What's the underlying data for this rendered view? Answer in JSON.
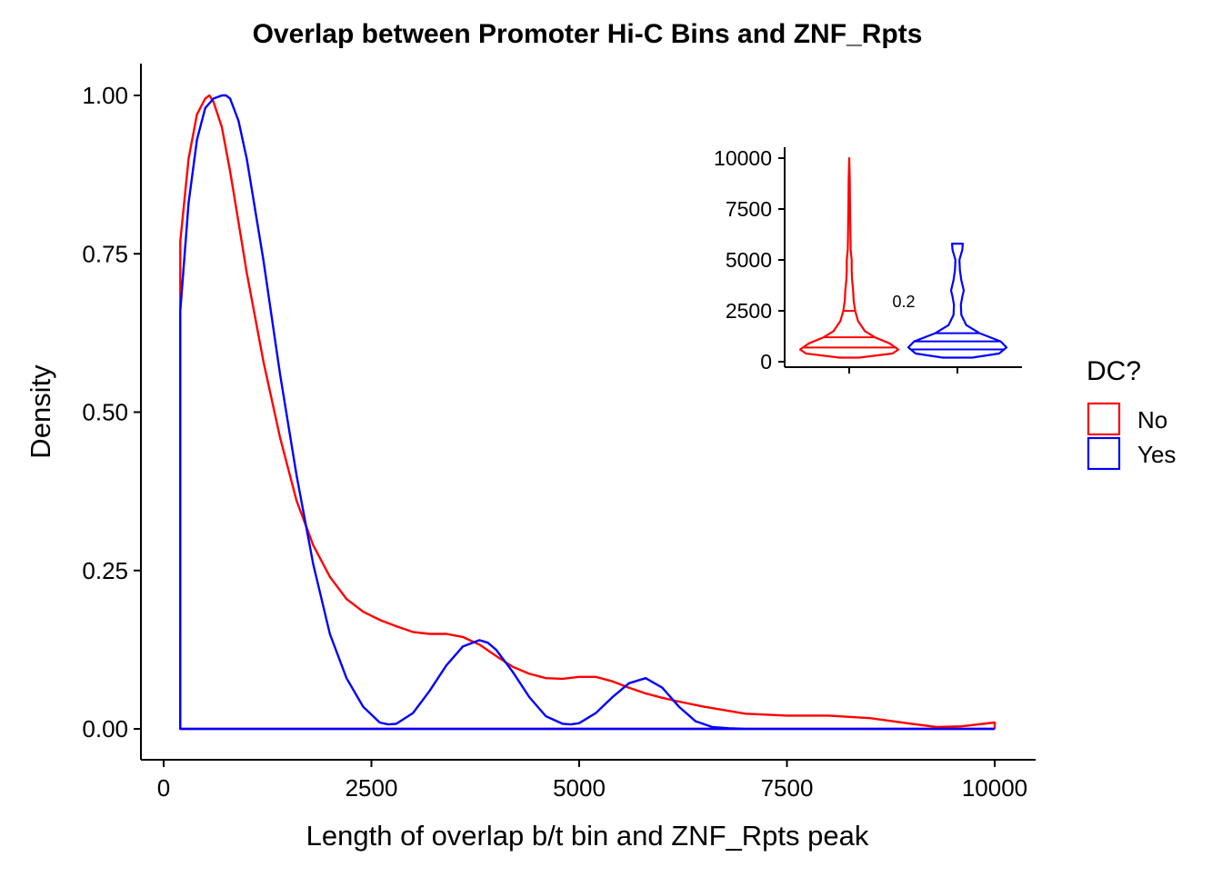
{
  "chart_data": {
    "type": "line",
    "title": "Overlap between Promoter Hi-C Bins and ZNF_Rpts",
    "xlabel": "Length of overlap b/t bin and ZNF_Rpts peak",
    "ylabel": "Density",
    "xlim": [
      0,
      10000
    ],
    "ylim": [
      0,
      1.0
    ],
    "x_ticks": [
      "0",
      "2500",
      "5000",
      "7500",
      "10000"
    ],
    "y_ticks": [
      "0.00",
      "0.25",
      "0.50",
      "0.75",
      "1.00"
    ],
    "grid": false,
    "legend": {
      "title": "DC?",
      "position": "right",
      "entries": [
        {
          "label": "No",
          "color": "#ff0000"
        },
        {
          "label": "Yes",
          "color": "#0000ff"
        }
      ]
    },
    "series": [
      {
        "name": "No",
        "color": "#ff0000",
        "x": [
          200,
          300,
          400,
          500,
          550,
          600,
          700,
          800,
          900,
          1000,
          1200,
          1400,
          1600,
          1800,
          2000,
          2200,
          2400,
          2600,
          2800,
          3000,
          3200,
          3400,
          3600,
          3800,
          4000,
          4200,
          4400,
          4600,
          4800,
          5000,
          5200,
          5400,
          5600,
          5800,
          6000,
          6200,
          6500,
          7000,
          7500,
          8000,
          8500,
          9000,
          9300,
          9600,
          10000
        ],
        "y": [
          0.77,
          0.9,
          0.97,
          0.995,
          1.0,
          0.99,
          0.95,
          0.88,
          0.8,
          0.72,
          0.58,
          0.46,
          0.36,
          0.29,
          0.24,
          0.205,
          0.185,
          0.172,
          0.162,
          0.153,
          0.15,
          0.15,
          0.145,
          0.133,
          0.115,
          0.098,
          0.087,
          0.08,
          0.079,
          0.082,
          0.082,
          0.075,
          0.065,
          0.056,
          0.049,
          0.043,
          0.035,
          0.024,
          0.021,
          0.021,
          0.017,
          0.008,
          0.003,
          0.004,
          0.01
        ]
      },
      {
        "name": "Yes",
        "color": "#0000ff",
        "x": [
          200,
          300,
          400,
          500,
          600,
          700,
          750,
          800,
          900,
          1000,
          1200,
          1400,
          1600,
          1800,
          2000,
          2200,
          2400,
          2600,
          2700,
          2800,
          3000,
          3200,
          3400,
          3600,
          3800,
          3900,
          4000,
          4200,
          4400,
          4600,
          4800,
          4900,
          5000,
          5200,
          5400,
          5600,
          5800,
          6000,
          6200,
          6400,
          6600,
          6800,
          7000,
          7500,
          8000,
          9000,
          10000
        ],
        "y": [
          0.66,
          0.83,
          0.93,
          0.98,
          0.995,
          1.0,
          1.0,
          0.995,
          0.96,
          0.9,
          0.74,
          0.56,
          0.4,
          0.26,
          0.15,
          0.08,
          0.035,
          0.01,
          0.007,
          0.008,
          0.025,
          0.06,
          0.1,
          0.13,
          0.14,
          0.136,
          0.125,
          0.09,
          0.05,
          0.02,
          0.008,
          0.007,
          0.009,
          0.025,
          0.05,
          0.072,
          0.08,
          0.065,
          0.035,
          0.012,
          0.003,
          0.001,
          0.0,
          0.0,
          0.0,
          0.0,
          0.0
        ]
      }
    ],
    "inset": {
      "type": "violin",
      "ylim": [
        0,
        10000
      ],
      "y_ticks": [
        "0",
        "2500",
        "5000",
        "7500",
        "10000"
      ],
      "annotation": "0.2",
      "violins": [
        {
          "group": "No",
          "color": "#ff0000",
          "profile": [
            [
              200,
              0.2
            ],
            [
              400,
              0.88
            ],
            [
              600,
              1.0
            ],
            [
              900,
              0.82
            ],
            [
              1200,
              0.52
            ],
            [
              1500,
              0.32
            ],
            [
              2000,
              0.18
            ],
            [
              2500,
              0.12
            ],
            [
              3000,
              0.09
            ],
            [
              3500,
              0.08
            ],
            [
              4000,
              0.06
            ],
            [
              4500,
              0.05
            ],
            [
              5000,
              0.05
            ],
            [
              5500,
              0.03
            ],
            [
              6000,
              0.025
            ],
            [
              7000,
              0.02
            ],
            [
              8000,
              0.015
            ],
            [
              9000,
              0.012
            ],
            [
              10000,
              0.0
            ]
          ],
          "quantiles": [
            700,
            1200,
            2500
          ]
        },
        {
          "group": "Yes",
          "color": "#0000ff",
          "profile": [
            [
              200,
              0.3
            ],
            [
              400,
              0.85
            ],
            [
              700,
              1.0
            ],
            [
              1000,
              0.88
            ],
            [
              1400,
              0.45
            ],
            [
              1800,
              0.18
            ],
            [
              2300,
              0.08
            ],
            [
              2800,
              0.07
            ],
            [
              3200,
              0.1
            ],
            [
              3500,
              0.13
            ],
            [
              4000,
              0.08
            ],
            [
              4500,
              0.05
            ],
            [
              5000,
              0.04
            ],
            [
              5500,
              0.1
            ],
            [
              5800,
              0.11
            ]
          ],
          "quantiles": [
            600,
            1000,
            1400
          ]
        }
      ]
    }
  }
}
